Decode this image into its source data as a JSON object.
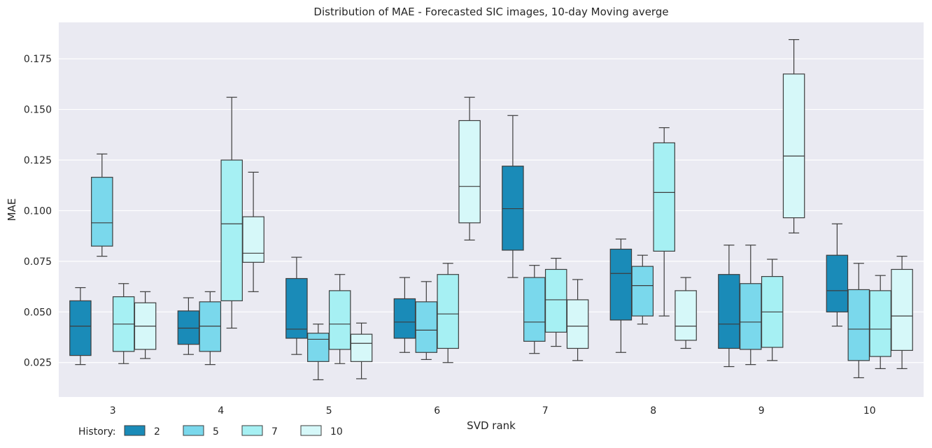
{
  "chart_data": {
    "type": "box",
    "title": "Distribution of MAE - Forecasted SIC images, 10-day Moving averge",
    "xlabel": "SVD rank",
    "ylabel": "MAE",
    "ylim": [
      0.008,
      0.193
    ],
    "yticks": [
      "0.025",
      "0.050",
      "0.075",
      "0.100",
      "0.125",
      "0.150",
      "0.175"
    ],
    "grid": true,
    "background": "#eaeaf2",
    "legend": {
      "title": "History:",
      "placement": "bottom-left"
    },
    "categories": [
      "3",
      "4",
      "5",
      "6",
      "7",
      "8",
      "9",
      "10"
    ],
    "series": [
      {
        "name": "2",
        "color": "#1a8bb8",
        "boxes": [
          {
            "whislo": 0.024,
            "q1": 0.0285,
            "med": 0.043,
            "q3": 0.0555,
            "whishi": 0.062
          },
          {
            "whislo": 0.029,
            "q1": 0.034,
            "med": 0.042,
            "q3": 0.0505,
            "whishi": 0.057
          },
          {
            "whislo": 0.029,
            "q1": 0.037,
            "med": 0.0415,
            "q3": 0.0665,
            "whishi": 0.077
          },
          {
            "whislo": 0.03,
            "q1": 0.037,
            "med": 0.045,
            "q3": 0.0565,
            "whishi": 0.067
          },
          {
            "whislo": 0.067,
            "q1": 0.0805,
            "med": 0.101,
            "q3": 0.122,
            "whishi": 0.147
          },
          {
            "whislo": 0.03,
            "q1": 0.046,
            "med": 0.069,
            "q3": 0.081,
            "whishi": 0.086
          },
          {
            "whislo": 0.023,
            "q1": 0.032,
            "med": 0.044,
            "q3": 0.0685,
            "whishi": 0.083
          },
          {
            "whislo": 0.043,
            "q1": 0.05,
            "med": 0.0605,
            "q3": 0.078,
            "whishi": 0.0935
          }
        ]
      },
      {
        "name": "5",
        "color": "#7ad8ec",
        "boxes": [
          {
            "whislo": 0.0775,
            "q1": 0.0825,
            "med": 0.094,
            "q3": 0.1165,
            "whishi": 0.128
          },
          {
            "whislo": 0.024,
            "q1": 0.0305,
            "med": 0.043,
            "q3": 0.055,
            "whishi": 0.06
          },
          {
            "whislo": 0.0165,
            "q1": 0.0255,
            "med": 0.0365,
            "q3": 0.0395,
            "whishi": 0.044
          },
          {
            "whislo": 0.0265,
            "q1": 0.03,
            "med": 0.041,
            "q3": 0.055,
            "whishi": 0.065
          },
          {
            "whislo": 0.0295,
            "q1": 0.0355,
            "med": 0.045,
            "q3": 0.067,
            "whishi": 0.073
          },
          {
            "whislo": 0.044,
            "q1": 0.048,
            "med": 0.063,
            "q3": 0.0725,
            "whishi": 0.078
          },
          {
            "whislo": 0.024,
            "q1": 0.0315,
            "med": 0.045,
            "q3": 0.064,
            "whishi": 0.083
          },
          {
            "whislo": 0.0175,
            "q1": 0.026,
            "med": 0.0415,
            "q3": 0.061,
            "whishi": 0.074
          }
        ]
      },
      {
        "name": "7",
        "color": "#a6f0f3",
        "boxes": [
          {
            "whislo": 0.0245,
            "q1": 0.0305,
            "med": 0.044,
            "q3": 0.0575,
            "whishi": 0.064
          },
          {
            "whislo": 0.042,
            "q1": 0.0555,
            "med": 0.0935,
            "q3": 0.125,
            "whishi": 0.156
          },
          {
            "whislo": 0.0245,
            "q1": 0.0315,
            "med": 0.044,
            "q3": 0.0605,
            "whishi": 0.0685
          },
          {
            "whislo": 0.025,
            "q1": 0.032,
            "med": 0.049,
            "q3": 0.0685,
            "whishi": 0.074
          },
          {
            "whislo": 0.033,
            "q1": 0.04,
            "med": 0.056,
            "q3": 0.071,
            "whishi": 0.0765
          },
          {
            "whislo": 0.048,
            "q1": 0.08,
            "med": 0.109,
            "q3": 0.1335,
            "whishi": 0.141
          },
          {
            "whislo": 0.026,
            "q1": 0.0325,
            "med": 0.05,
            "q3": 0.0675,
            "whishi": 0.076
          },
          {
            "whislo": 0.022,
            "q1": 0.028,
            "med": 0.0415,
            "q3": 0.0605,
            "whishi": 0.068
          }
        ]
      },
      {
        "name": "10",
        "color": "#d6f8f9",
        "boxes": [
          {
            "whislo": 0.027,
            "q1": 0.0315,
            "med": 0.043,
            "q3": 0.0545,
            "whishi": 0.06
          },
          {
            "whislo": 0.06,
            "q1": 0.0745,
            "med": 0.079,
            "q3": 0.097,
            "whishi": 0.119
          },
          {
            "whislo": 0.017,
            "q1": 0.0255,
            "med": 0.0345,
            "q3": 0.039,
            "whishi": 0.0445
          },
          {
            "whislo": 0.0855,
            "q1": 0.094,
            "med": 0.112,
            "q3": 0.1445,
            "whishi": 0.156
          },
          {
            "whislo": 0.026,
            "q1": 0.032,
            "med": 0.043,
            "q3": 0.056,
            "whishi": 0.066
          },
          {
            "whislo": 0.032,
            "q1": 0.036,
            "med": 0.043,
            "q3": 0.0605,
            "whishi": 0.067
          },
          {
            "whislo": 0.089,
            "q1": 0.0965,
            "med": 0.127,
            "q3": 0.1675,
            "whishi": 0.1845
          },
          {
            "whislo": 0.022,
            "q1": 0.031,
            "med": 0.048,
            "q3": 0.071,
            "whishi": 0.0775
          }
        ]
      }
    ]
  }
}
